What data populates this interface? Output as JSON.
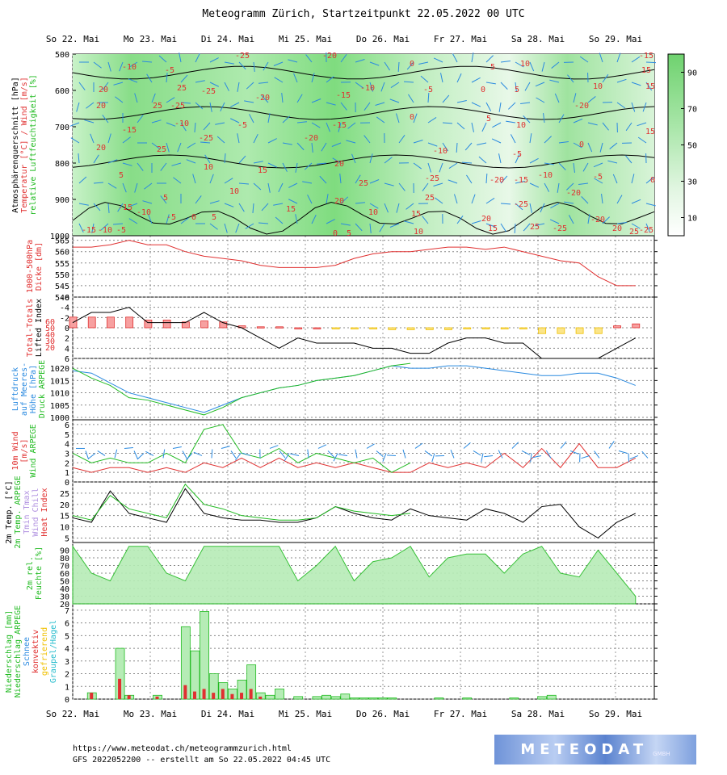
{
  "title": "Meteogramm Zürich, Startzeitpunkt 22.05.2022 00 UTC",
  "footer": {
    "url": "https://www.meteodat.ch/meteogrammzurich.html",
    "run": "GFS 2022052200 -- erstellt am So 22.05.2022 04:45 UTC"
  },
  "logo": {
    "name": "METEODAT",
    "suffix": "GMBH"
  },
  "days": [
    "So 22. Mai",
    "Mo 23. Mai",
    "Di 24. Mai",
    "Mi 25. Mai",
    "Do 26. Mai",
    "Fr 27. Mai",
    "Sa 28. Mai",
    "So 29. Mai"
  ],
  "colors": {
    "red": "#e03030",
    "blue": "#2a8ae0",
    "green": "#22bb22",
    "black": "#000000",
    "violet": "#b090e0",
    "gold": "#f0c000",
    "fill_green": "#b6ecb6"
  },
  "chart_data": [
    {
      "type": "heatmap",
      "panel": "cross_section",
      "ylabels": [
        {
          "text": "Atmosphärenquerschnitt [hPa]",
          "color": "#000000"
        },
        {
          "text": "Temperatur [°C] / Wind [m/s]",
          "color": "#e03030"
        },
        {
          "text": "relative Luftfeuchtigkeit [%]",
          "color": "#22bb22"
        }
      ],
      "y_ticks": [
        "500",
        "600",
        "700",
        "800",
        "900",
        "1000"
      ],
      "ylim": [
        1000,
        500
      ],
      "colorbar_ticks": [
        "90",
        "70",
        "50",
        "30",
        "10"
      ],
      "temperature_labels": [
        "-25",
        "-20",
        "-15",
        "-10",
        "-5",
        "0",
        "5",
        "10",
        "15",
        "20",
        "25"
      ]
    },
    {
      "type": "line",
      "panel": "thickness",
      "ylabels": [
        {
          "text": "1000-500hPa",
          "color": "#e03030"
        },
        {
          "text": "Dicke [dm]",
          "color": "#e03030"
        }
      ],
      "y_ticks": [
        "565",
        "560",
        "555",
        "550",
        "545",
        "540"
      ],
      "ylim": [
        540,
        567
      ],
      "series": [
        {
          "name": "Dicke",
          "color": "#e03030",
          "x": [
            0,
            6,
            12,
            18,
            24,
            30,
            36,
            42,
            48,
            54,
            60,
            66,
            72,
            78,
            84,
            90,
            96,
            102,
            108,
            114,
            120,
            126,
            132,
            138,
            144,
            150,
            156,
            162,
            168,
            174,
            180
          ],
          "values": [
            562,
            562,
            563,
            565,
            563,
            563,
            560,
            558,
            557,
            556,
            554,
            553,
            553,
            553,
            554,
            557,
            559,
            560,
            560,
            561,
            562,
            562,
            561,
            562,
            560,
            558,
            556,
            555,
            549,
            545,
            545
          ]
        }
      ]
    },
    {
      "type": "bar",
      "panel": "stability",
      "ylabels": [
        {
          "text": "Total-Totals",
          "color": "#e03030"
        },
        {
          "text": "Lifted Index",
          "color": "#000000"
        }
      ],
      "y_ticks": [
        "-6",
        "-4",
        "-2",
        "0",
        "2",
        "4",
        "6"
      ],
      "tt_ticks": [
        "20",
        "30",
        "40",
        "50",
        "60"
      ],
      "ylim": [
        6,
        -6
      ],
      "series": [
        {
          "name": "Lifted Index",
          "color": "#000000",
          "x": [
            0,
            6,
            12,
            18,
            24,
            30,
            36,
            42,
            48,
            54,
            60,
            66,
            72,
            78,
            84,
            90,
            96,
            102,
            108,
            114,
            120,
            126,
            132,
            138,
            144,
            150,
            156,
            162,
            168,
            174,
            180
          ],
          "values": [
            -1,
            -3,
            -3,
            -4,
            -1,
            -1,
            -1,
            -3,
            -1,
            0,
            2,
            4,
            2,
            3,
            3,
            3,
            4,
            4,
            5,
            5,
            3,
            2,
            2,
            3,
            3,
            6,
            6,
            6,
            6,
            4,
            2
          ]
        },
        {
          "name": "Total-Totals",
          "color": "#e03030",
          "x": [
            0,
            6,
            12,
            18,
            24,
            30,
            36,
            42,
            48,
            54,
            60,
            66,
            72,
            78,
            84,
            90,
            96,
            102,
            108,
            114,
            120,
            126,
            132,
            138,
            144,
            150,
            156,
            162,
            168,
            174,
            180
          ],
          "values": [
            55,
            55,
            55,
            55,
            52,
            52,
            50,
            51,
            50,
            46,
            45,
            45,
            44,
            44,
            43,
            43,
            43,
            42,
            42,
            42,
            42,
            43,
            43,
            43,
            43,
            38,
            38,
            38,
            38,
            46,
            48
          ]
        }
      ]
    },
    {
      "type": "line",
      "panel": "pressure",
      "ylabels": [
        {
          "text": "Luftdruck",
          "color": "#2a8ae0"
        },
        {
          "text": "auf Meeres-",
          "color": "#2a8ae0"
        },
        {
          "text": "Höhe [hPa]",
          "color": "#2a8ae0"
        },
        {
          "text": "Druck ARPEGE",
          "color": "#22bb22"
        }
      ],
      "y_ticks": [
        "1020",
        "1015",
        "1010",
        "1005",
        "1000"
      ],
      "ylim": [
        999,
        1024
      ],
      "series": [
        {
          "name": "GFS",
          "color": "#2a8ae0",
          "x": [
            0,
            6,
            12,
            18,
            24,
            30,
            36,
            42,
            48,
            54,
            60,
            66,
            72,
            78,
            84,
            90,
            96,
            102,
            108,
            114,
            120,
            126,
            132,
            138,
            144,
            150,
            156,
            162,
            168,
            174,
            180
          ],
          "values": [
            1019,
            1018,
            1014,
            1010,
            1008,
            1006,
            1004,
            1002,
            1005,
            1008,
            1010,
            1012,
            1013,
            1015,
            1016,
            1017,
            1019,
            1021,
            1020,
            1020,
            1021,
            1021,
            1020,
            1019,
            1018,
            1017,
            1017,
            1018,
            1018,
            1016,
            1013
          ]
        },
        {
          "name": "ARPEGE",
          "color": "#22bb22",
          "x": [
            0,
            6,
            12,
            18,
            24,
            30,
            36,
            42,
            48,
            54,
            60,
            66,
            72,
            78,
            84,
            90,
            96,
            102,
            108
          ],
          "values": [
            1020,
            1016,
            1013,
            1008,
            1007,
            1005,
            1003,
            1001,
            1004,
            1008,
            1010,
            1012,
            1013,
            1015,
            1016,
            1017,
            1019,
            1021,
            1022
          ]
        }
      ]
    },
    {
      "type": "line",
      "panel": "wind10m",
      "ylabels": [
        {
          "text": "10m Wind",
          "color": "#e03030"
        },
        {
          "text": "[m/s]",
          "color": "#e03030"
        },
        {
          "text": "Wind ARPEGE",
          "color": "#22bb22"
        }
      ],
      "y_ticks": [
        "6",
        "5",
        "4",
        "3",
        "2",
        "1",
        "0"
      ],
      "ylim": [
        0,
        6.5
      ],
      "series": [
        {
          "name": "GFS",
          "color": "#e03030",
          "x": [
            0,
            6,
            12,
            18,
            24,
            30,
            36,
            42,
            48,
            54,
            60,
            66,
            72,
            78,
            84,
            90,
            96,
            102,
            108,
            114,
            120,
            126,
            132,
            138,
            144,
            150,
            156,
            162,
            168,
            174,
            180
          ],
          "values": [
            1.5,
            1.0,
            1.5,
            1.5,
            1.0,
            1.5,
            1.0,
            2.0,
            1.5,
            2.5,
            1.5,
            2.5,
            1.5,
            2.0,
            1.5,
            2.0,
            1.5,
            1.0,
            1.0,
            2.0,
            1.5,
            2.0,
            1.5,
            3.0,
            1.5,
            3.5,
            1.5,
            4.0,
            1.5,
            1.5,
            2.5
          ]
        },
        {
          "name": "ARPEGE",
          "color": "#22bb22",
          "x": [
            0,
            6,
            12,
            18,
            24,
            30,
            36,
            42,
            48,
            54,
            60,
            66,
            72,
            78,
            84,
            90,
            96,
            102,
            108
          ],
          "values": [
            3.0,
            2.0,
            2.5,
            2.0,
            2.0,
            3.0,
            2.0,
            5.5,
            6.0,
            3.0,
            2.5,
            3.5,
            2.0,
            3.0,
            2.5,
            2.0,
            2.5,
            1.0,
            2.0
          ]
        }
      ]
    },
    {
      "type": "line",
      "panel": "temp2m",
      "ylabels": [
        {
          "text": "2m Temp. [°C]",
          "color": "#000000"
        },
        {
          "text": "2m Temp. ARPEGE",
          "color": "#22bb22"
        },
        {
          "text": "Tmin Tmax",
          "color": "#b090e0"
        },
        {
          "text": "Wind Chill",
          "color": "#b090e0"
        },
        {
          "text": "Heat Index",
          "color": "#e03030"
        }
      ],
      "y_ticks": [
        "25",
        "20",
        "15",
        "10",
        "5"
      ],
      "ylim": [
        3,
        30
      ],
      "series": [
        {
          "name": "GFS",
          "color": "#000000",
          "x": [
            0,
            6,
            12,
            18,
            24,
            30,
            36,
            42,
            48,
            54,
            60,
            66,
            72,
            78,
            84,
            90,
            96,
            102,
            108,
            114,
            120,
            126,
            132,
            138,
            144,
            150,
            156,
            162,
            168,
            174,
            180
          ],
          "values": [
            14,
            12,
            26,
            16,
            14,
            12,
            27,
            16,
            14,
            13,
            13,
            12,
            12,
            14,
            19,
            16,
            14,
            13,
            18,
            15,
            14,
            13,
            18,
            16,
            12,
            19,
            20,
            10,
            5,
            12,
            16
          ]
        },
        {
          "name": "ARPEGE",
          "color": "#22bb22",
          "x": [
            0,
            6,
            12,
            18,
            24,
            30,
            36,
            42,
            48,
            54,
            60,
            66,
            72,
            78,
            84,
            90,
            96,
            102,
            108
          ],
          "values": [
            15,
            13,
            24,
            18,
            16,
            14,
            29,
            20,
            18,
            15,
            14,
            13,
            13,
            14,
            19,
            17,
            16,
            15,
            16
          ]
        }
      ]
    },
    {
      "type": "area",
      "panel": "humidity",
      "ylabels": [
        {
          "text": "2m rel.",
          "color": "#22bb22"
        },
        {
          "text": "Feuchte [%]",
          "color": "#22bb22"
        }
      ],
      "y_ticks": [
        "90",
        "80",
        "70",
        "60",
        "50",
        "40",
        "30",
        "20"
      ],
      "ylim": [
        20,
        100
      ],
      "series": [
        {
          "name": "Feuchte",
          "color": "#22bb22",
          "x": [
            0,
            6,
            12,
            18,
            24,
            30,
            36,
            42,
            48,
            54,
            60,
            66,
            72,
            78,
            84,
            90,
            96,
            102,
            108,
            114,
            120,
            126,
            132,
            138,
            144,
            150,
            156,
            162,
            168,
            174,
            180
          ],
          "values": [
            95,
            60,
            50,
            95,
            95,
            60,
            50,
            95,
            95,
            95,
            95,
            95,
            50,
            70,
            95,
            50,
            75,
            80,
            95,
            55,
            80,
            85,
            85,
            60,
            85,
            95,
            60,
            55,
            90,
            60,
            30
          ]
        }
      ]
    },
    {
      "type": "bar",
      "panel": "precip",
      "ylabels": [
        {
          "text": "Niederschlag [mm]",
          "color": "#22bb22"
        },
        {
          "text": "Niederschlag ARPEGE",
          "color": "#22bb22"
        },
        {
          "text": "Schnee",
          "color": "#2a8ae0"
        },
        {
          "text": "konvektiv",
          "color": "#e03030"
        },
        {
          "text": "gefrierend",
          "color": "#f0c000"
        },
        {
          "text": "Graupel/Hagel",
          "color": "#22bbcc"
        }
      ],
      "y_ticks": [
        "7",
        "6",
        "5",
        "4",
        "3",
        "2",
        "1",
        "0"
      ],
      "ylim": [
        0,
        7.5
      ],
      "series": [
        {
          "name": "Niederschlag",
          "color": "#22bb22",
          "x": [
            6,
            15,
            18,
            27,
            36,
            39,
            42,
            45,
            48,
            51,
            54,
            57,
            60,
            63,
            66,
            72,
            78,
            81,
            84,
            87,
            90,
            93,
            96,
            99,
            102,
            117,
            126,
            141,
            150,
            153
          ],
          "values": [
            0.5,
            4.0,
            0.3,
            0.3,
            5.7,
            3.8,
            6.9,
            2.0,
            1.3,
            0.8,
            1.5,
            2.7,
            0.5,
            0.3,
            0.8,
            0.2,
            0.2,
            0.3,
            0.2,
            0.4,
            0.1,
            0.1,
            0.1,
            0.1,
            0.1,
            0.1,
            0.1,
            0.1,
            0.2,
            0.3
          ]
        },
        {
          "name": "konvektiv",
          "color": "#e03030",
          "x": [
            6,
            15,
            18,
            27,
            36,
            39,
            42,
            45,
            48,
            51,
            54,
            57,
            60
          ],
          "values": [
            0.5,
            1.6,
            0.3,
            0.2,
            1.1,
            0.6,
            0.8,
            0.5,
            0.8,
            0.4,
            0.5,
            0.8,
            0.2
          ]
        }
      ]
    }
  ]
}
